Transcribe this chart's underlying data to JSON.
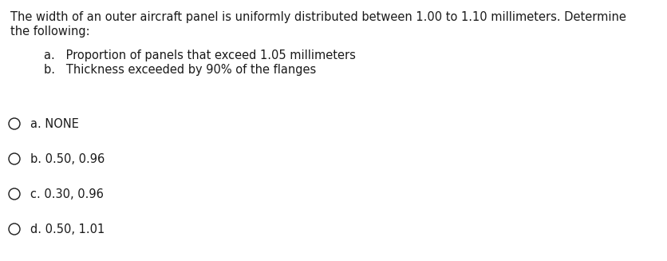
{
  "background_color": "#ffffff",
  "question_line1": "The width of an outer aircraft panel is uniformly distributed between 1.00 to 1.10 millimeters. Determine",
  "question_line2": "the following:",
  "sub_a": "a.   Proportion of panels that exceed 1.05 millimeters",
  "sub_b": "b.   Thickness exceeded by 90% of the flanges",
  "options": [
    {
      "label": "a.",
      "text": "NONE"
    },
    {
      "label": "b.",
      "text": "0.50, 0.96"
    },
    {
      "label": "c.",
      "text": "0.30, 0.96"
    },
    {
      "label": "d.",
      "text": "0.50, 1.01"
    }
  ],
  "font_size": 10.5,
  "text_color": "#1a1a1a",
  "figsize": [
    8.37,
    3.27
  ],
  "dpi": 100
}
